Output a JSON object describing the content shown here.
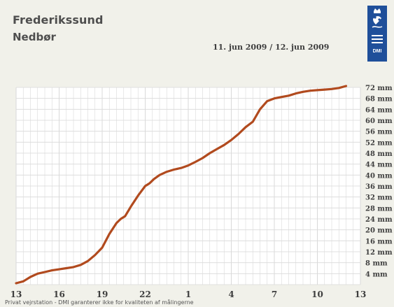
{
  "header": {
    "station": "Frederikssund",
    "parameter": "Nedbør",
    "date_range": "11. jun 2009 / 12. jun 2009"
  },
  "footer": {
    "note": "Privat vejrstation - DMI garanterer ikke for kvaliteten af målingerne"
  },
  "logo": {
    "text": "DMI",
    "color": "#1f4f9a"
  },
  "colors": {
    "background": "#f1f1ea",
    "plot_background": "#ffffff",
    "grid": "#d9d9d9",
    "line": "#b14a1e",
    "text": "#3e3e3e"
  },
  "chart_data": {
    "type": "line",
    "title": "",
    "xlabel": "",
    "ylabel": "",
    "x_tick_labels": [
      "13",
      "16",
      "19",
      "22",
      "1",
      "4",
      "7",
      "10",
      "13"
    ],
    "y_tick_labels": [
      "4 mm",
      "8 mm",
      "12 mm",
      "16 mm",
      "20 mm",
      "24 mm",
      "28 mm",
      "32 mm",
      "36 mm",
      "40 mm",
      "44 mm",
      "48 mm",
      "52 mm",
      "56 mm",
      "60 mm",
      "64 mm",
      "68 mm",
      "72 mm"
    ],
    "ylim": [
      0,
      72
    ],
    "x_unit": "hours since 13:00 on 11 jun 2009",
    "xlim": [
      0,
      24
    ],
    "grid": true,
    "legend": "none",
    "series": [
      {
        "x": [
          0.0,
          0.5,
          1.0,
          1.5,
          2.0,
          2.5,
          3.0,
          3.5,
          4.0,
          4.5,
          5.0,
          5.5,
          6.0,
          6.5,
          7.0,
          7.3,
          7.6,
          8.0,
          8.5,
          9.0,
          9.3,
          9.6,
          10.0,
          10.5,
          11.0,
          11.5,
          12.0,
          12.5,
          13.0,
          13.5,
          14.0,
          14.5,
          15.0,
          15.5,
          16.0,
          16.5,
          17.0,
          17.5,
          18.0,
          18.3,
          18.6,
          19.0,
          19.5,
          20.0,
          20.5,
          21.0,
          21.5,
          22.0,
          22.5,
          23.0
        ],
        "y": [
          0.5,
          1.2,
          2.8,
          4.0,
          4.6,
          5.2,
          5.6,
          6.0,
          6.4,
          7.2,
          8.6,
          10.8,
          13.5,
          18.5,
          22.5,
          24.0,
          25.0,
          28.5,
          32.5,
          36.0,
          37.0,
          38.5,
          40.0,
          41.2,
          42.0,
          42.6,
          43.5,
          44.8,
          46.2,
          48.0,
          49.5,
          51.0,
          52.8,
          55.0,
          57.5,
          59.5,
          64.0,
          67.0,
          68.0,
          68.3,
          68.6,
          69.0,
          69.8,
          70.4,
          70.8,
          71.0,
          71.2,
          71.4,
          71.8,
          72.5
        ]
      }
    ]
  }
}
